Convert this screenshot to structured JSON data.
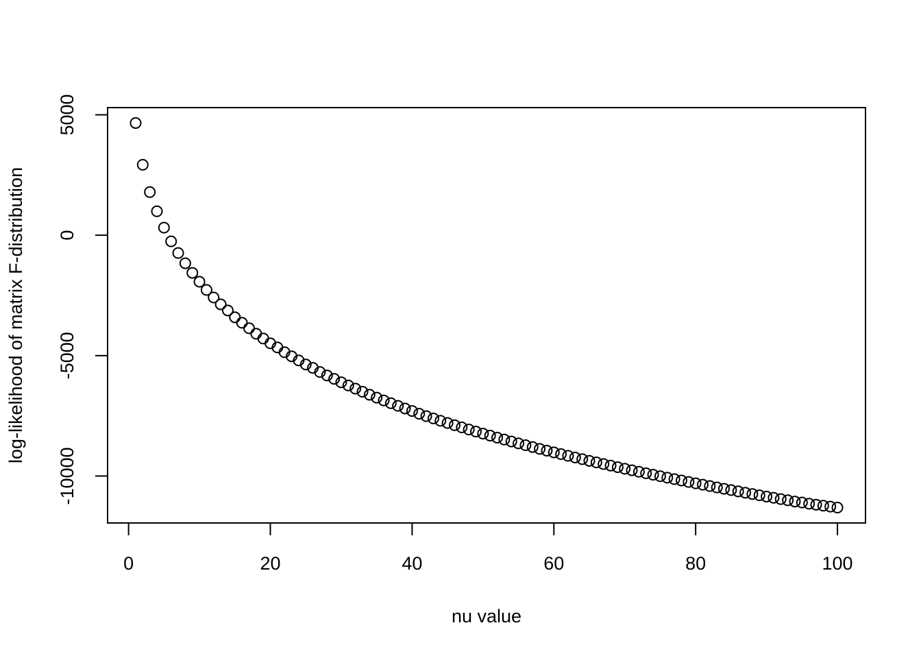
{
  "chart_data": {
    "type": "scatter",
    "x_label": "nu value",
    "y_label": "log-likelihood of matrix F-distribution",
    "x": [
      1,
      2,
      3,
      4,
      5,
      6,
      7,
      8,
      9,
      10,
      11,
      12,
      13,
      14,
      15,
      16,
      17,
      18,
      19,
      20,
      21,
      22,
      23,
      24,
      25,
      26,
      27,
      28,
      29,
      30,
      31,
      32,
      33,
      34,
      35,
      36,
      37,
      38,
      39,
      40,
      41,
      42,
      43,
      44,
      45,
      46,
      47,
      48,
      49,
      50,
      51,
      52,
      53,
      54,
      55,
      56,
      57,
      58,
      59,
      60,
      61,
      62,
      63,
      64,
      65,
      66,
      67,
      68,
      69,
      70,
      71,
      72,
      73,
      74,
      75,
      76,
      77,
      78,
      79,
      80,
      81,
      82,
      83,
      84,
      85,
      86,
      87,
      88,
      89,
      90,
      91,
      92,
      93,
      94,
      95,
      96,
      97,
      98,
      99,
      100
    ],
    "values": [
      4659,
      2926,
      1790,
      994,
      313,
      -256,
      -739,
      -1165,
      -1563,
      -1932,
      -2273,
      -2585,
      -2869,
      -3125,
      -3409,
      -3636,
      -3864,
      -4091,
      -4290,
      -4489,
      -4659,
      -4858,
      -5028,
      -5199,
      -5369,
      -5511,
      -5682,
      -5824,
      -5966,
      -6108,
      -6240,
      -6370,
      -6500,
      -6625,
      -6745,
      -6860,
      -6975,
      -7085,
      -7195,
      -7300,
      -7414,
      -7513,
      -7610,
      -7705,
      -7798,
      -7889,
      -7979,
      -8067,
      -8153,
      -8238,
      -8322,
      -8404,
      -8485,
      -8564,
      -8643,
      -8720,
      -8796,
      -8871,
      -8945,
      -9017,
      -9090,
      -9160,
      -9230,
      -9300,
      -9368,
      -9435,
      -9502,
      -9567,
      -9632,
      -9697,
      -9760,
      -9823,
      -9885,
      -9947,
      -10007,
      -10067,
      -10127,
      -10186,
      -10244,
      -10302,
      -10359,
      -10416,
      -10472,
      -10528,
      -10583,
      -10638,
      -10692,
      -10745,
      -10799,
      -10852,
      -10904,
      -10956,
      -11007,
      -11058,
      -11100,
      -11150,
      -11190,
      -11230,
      -11270,
      -11310
    ],
    "color": "#000000",
    "xlim": [
      -2.96,
      103.96
    ],
    "xticks": [
      0,
      20,
      40,
      60,
      80,
      100
    ],
    "ylim": [
      -11949,
      5298
    ],
    "yticks": [
      -10000,
      -5000,
      0,
      5000
    ]
  }
}
